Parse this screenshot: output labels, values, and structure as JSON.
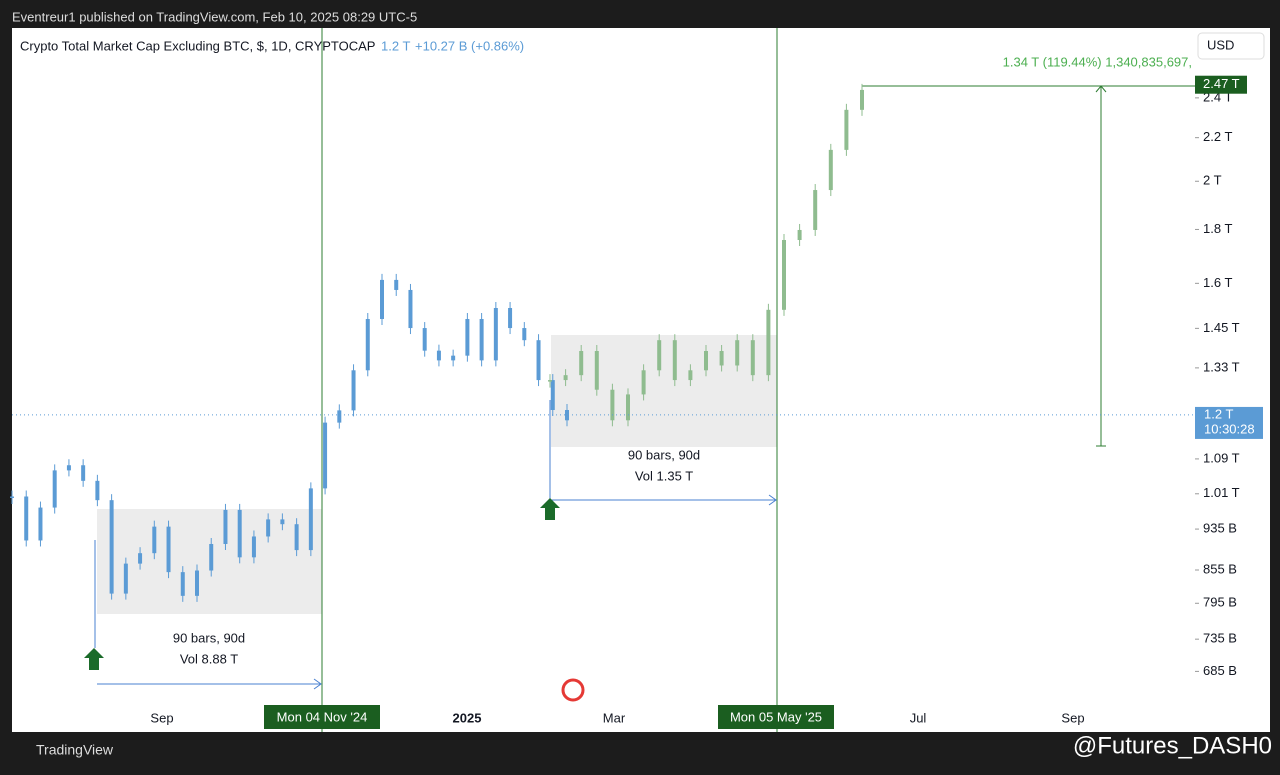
{
  "header": {
    "publisher": "Eventreur1 published on TradingView.com, Feb 10, 2025 08:29 UTC-5",
    "brand": "TradingView",
    "watermark": "@Futures_DASH0"
  },
  "legend": {
    "title": "Crypto Total Market Cap Excluding BTC, $, 1D, CRYPTOCAP",
    "price": "1.2 T",
    "change": "+10.27 B (+0.86%)"
  },
  "currency": "USD",
  "chart_data": {
    "type": "candlestick",
    "log_scale": true,
    "ylim": [
      600,
      2796
    ],
    "yticks": [
      {
        "value": 685,
        "label": "685 B"
      },
      {
        "value": 735,
        "label": "735 B"
      },
      {
        "value": 795,
        "label": "795 B"
      },
      {
        "value": 855,
        "label": "855 B"
      },
      {
        "value": 935,
        "label": "935 B"
      },
      {
        "value": 1010,
        "label": "1.01 T"
      },
      {
        "value": 1090,
        "label": "1.09 T"
      },
      {
        "value": 1330,
        "label": "1.33 T"
      },
      {
        "value": 1450,
        "label": "1.45 T"
      },
      {
        "value": 1600,
        "label": "1.6 T"
      },
      {
        "value": 1800,
        "label": "1.8 T"
      },
      {
        "value": 2000,
        "label": "2 T"
      },
      {
        "value": 2200,
        "label": "2.2 T"
      },
      {
        "value": 2400,
        "label": "2.4 T"
      }
    ],
    "xlabels": [
      "Sep",
      "2025",
      "Mar",
      "Jul",
      "Sep"
    ],
    "date_badges": [
      "Mon 04 Nov '24",
      "Mon 05 May '25"
    ],
    "series": [
      {
        "color": "#5b9bd5",
        "values": [
          1004,
          912,
          980,
          1063,
          1075,
          1039,
          996,
          812,
          867,
          887,
          940,
          851,
          808,
          854,
          905,
          975,
          879,
          920,
          955,
          945,
          893,
          1022,
          1180,
          1212,
          1323,
          1480,
          1612,
          1577,
          1451,
          1381,
          1352,
          1366,
          1480,
          1352,
          1516,
          1451,
          1413,
          1295,
          1213,
          1186
        ]
      },
      {
        "color": "#8fbc8f",
        "values": [
          1295,
          1309,
          1380,
          1268,
          1186,
          1255,
          1323,
          1413,
          1295,
          1323,
          1380,
          1337,
          1413,
          1309,
          1510,
          1759,
          1798,
          1962,
          2142,
          2338,
          2442
        ]
      }
    ],
    "current_price": {
      "value": 1200,
      "label": "1.2 T"
    },
    "countdown": "10:30:28",
    "target": {
      "value": 2470,
      "label": "2.47 T"
    },
    "measure": "1.34 T (119.44%) 1,340,835,697,",
    "ranges": [
      {
        "bars": "90 bars, 90d",
        "vol": "Vol 8.88 T"
      },
      {
        "bars": "90 bars, 90d",
        "vol": "Vol 1.35 T"
      }
    ]
  }
}
